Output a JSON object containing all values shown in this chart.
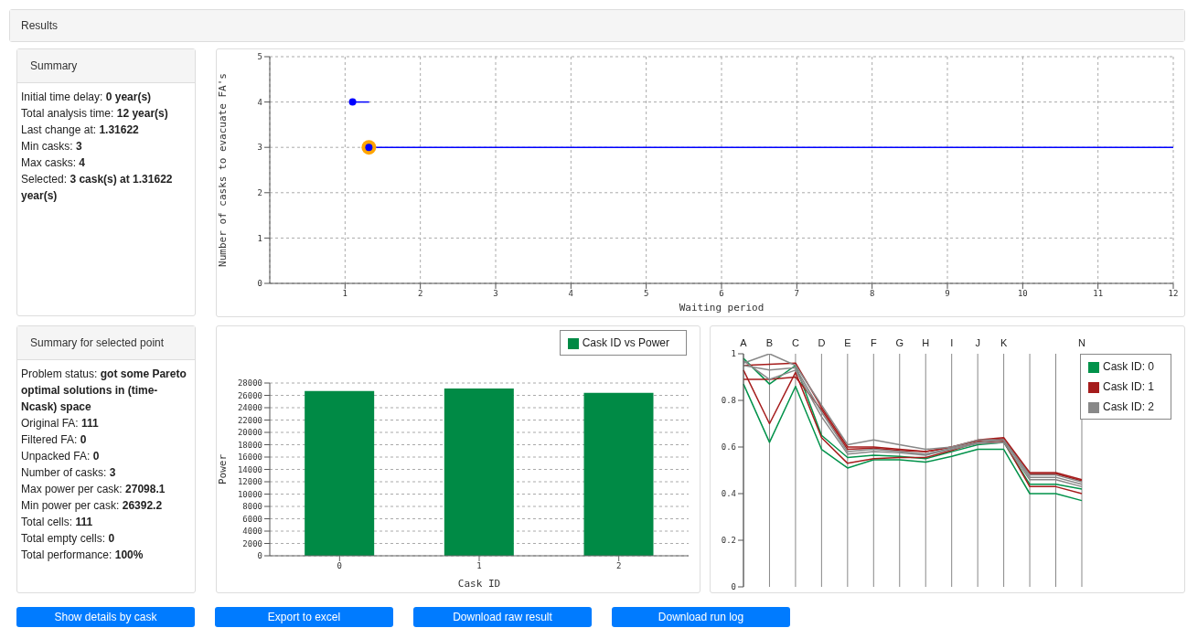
{
  "chart_data": [
    {
      "type": "other",
      "title": "Results"
    },
    {
      "type": "other",
      "title": "Summary",
      "annotations": [
        "Initial time delay: 0 year(s)",
        "Total analysis time: 12 year(s)",
        "Last change at: 1.31622",
        "Min casks: 3",
        "Max casks: 4",
        "Selected: 3 cask(s) at 1.31622 year(s)"
      ]
    },
    {
      "type": "line",
      "xlabel": "Waiting period",
      "ylabel": "Number of casks to evacuate FA's",
      "xlim": [
        0,
        12
      ],
      "xticks": [
        1,
        2,
        3,
        4,
        5,
        6,
        7,
        8,
        9,
        10,
        11,
        12
      ],
      "ylim": [
        0,
        5
      ],
      "yticks": [
        0,
        1,
        2,
        3,
        4,
        5
      ],
      "grid": true,
      "series": [
        {
          "color": "#0000ff",
          "x": [
            1.1,
            1.32
          ],
          "values": [
            4,
            4
          ]
        },
        {
          "color": "#0000ff",
          "x": [
            1.31622,
            12
          ],
          "values": [
            3,
            3
          ]
        },
        {
          "type": "scatter",
          "color": "#ffa500",
          "x": [
            1.31622
          ],
          "values": [
            3
          ]
        },
        {
          "type": "scatter",
          "color": "#0000ff",
          "x": [
            1.1,
            1.31622
          ],
          "values": [
            4,
            3
          ]
        }
      ]
    },
    {
      "type": "other",
      "title": "Summary for selected point",
      "annotations": [
        "Problem status: got some Pareto optimal solutions in (time-Ncask) space",
        "Original FA: 111",
        "Filtered FA: 0",
        "Unpacked FA: 0",
        "Number of casks: 3",
        "Max power per cask: 27098.1",
        "Min power per cask: 26392.2",
        "Total cells: 111",
        "Total empty cells: 0",
        "Total performance: 100%"
      ]
    },
    {
      "type": "bar",
      "categories": [
        "0",
        "1",
        "2"
      ],
      "xlabel": "Cask ID",
      "ylabel": "Power",
      "ylim": [
        0,
        28000
      ],
      "yticks": [
        0,
        2000,
        4000,
        6000,
        8000,
        10000,
        12000,
        14000,
        16000,
        18000,
        20000,
        22000,
        24000,
        26000,
        28000
      ],
      "grid": "y",
      "legend": "top right",
      "series": [
        {
          "name": "Cask ID vs Power",
          "color": "#008a45",
          "values": [
            26700,
            27100,
            26400
          ]
        }
      ]
    },
    {
      "type": "line",
      "categories": [
        "A",
        "B",
        "C",
        "D",
        "E",
        "F",
        "G",
        "H",
        "I",
        "J",
        "K",
        null,
        null,
        "N"
      ],
      "ylim": [
        0,
        1
      ],
      "yticks": [
        0,
        0.2,
        0.4,
        0.6,
        0.8,
        1
      ],
      "grid": "x",
      "legend": "top right",
      "series": [
        {
          "name": "Cask ID: 0",
          "color": "#00924a",
          "values": [
            0.98,
            0.87,
            0.95,
            0.65,
            0.555,
            0.565,
            0.56,
            0.55,
            0.58,
            0.61,
            0.62,
            0.44,
            0.44,
            0.42
          ]
        },
        {
          "color": "#00924a",
          "values": [
            0.87,
            0.62,
            0.86,
            0.59,
            0.51,
            0.545,
            0.545,
            0.535,
            0.56,
            0.59,
            0.59,
            0.4,
            0.4,
            0.37
          ]
        },
        {
          "name": "Cask ID: 1",
          "color": "#a51c1c",
          "values": [
            0.93,
            0.7,
            0.92,
            0.64,
            0.53,
            0.55,
            0.555,
            0.555,
            0.585,
            0.62,
            0.625,
            0.43,
            0.43,
            0.4
          ]
        },
        {
          "color": "#a51c1c",
          "values": [
            0.89,
            0.89,
            0.9,
            0.76,
            0.59,
            0.595,
            0.585,
            0.58,
            0.6,
            0.63,
            0.64,
            0.49,
            0.49,
            0.46
          ]
        },
        {
          "color": "#a51c1c",
          "values": [
            0.95,
            0.955,
            0.96,
            0.77,
            0.6,
            0.6,
            0.59,
            0.58,
            0.6,
            0.625,
            0.635,
            0.485,
            0.485,
            0.455
          ]
        },
        {
          "name": "Cask ID: 2",
          "color": "#888888",
          "values": [
            0.96,
            1,
            0.95,
            0.78,
            0.61,
            0.63,
            0.61,
            0.59,
            0.6,
            0.63,
            0.63,
            0.48,
            0.48,
            0.45
          ]
        },
        {
          "color": "#888888",
          "values": [
            0.95,
            0.93,
            0.94,
            0.75,
            0.58,
            0.59,
            0.58,
            0.57,
            0.595,
            0.62,
            0.63,
            0.47,
            0.47,
            0.44
          ]
        },
        {
          "color": "#888888",
          "values": [
            0.97,
            0.89,
            0.93,
            0.73,
            0.57,
            0.58,
            0.575,
            0.565,
            0.59,
            0.615,
            0.62,
            0.46,
            0.46,
            0.43
          ]
        }
      ]
    },
    {
      "type": "other",
      "annotations": [
        "Show details by cask",
        "Export to excel",
        "Download raw result",
        "Download run log"
      ]
    }
  ]
}
